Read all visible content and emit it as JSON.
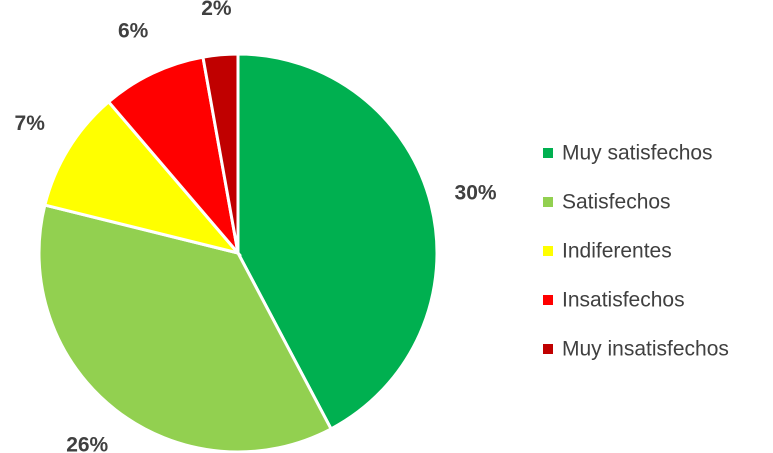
{
  "chart_data": {
    "type": "pie",
    "categories": [
      "Muy satisfechos",
      "Satisfechos",
      "Indiferentes",
      "Insatisfechos",
      "Muy insatisfechos"
    ],
    "values": [
      30,
      26,
      7,
      6,
      2
    ],
    "value_labels": [
      "30%",
      "26%",
      "7%",
      "6%",
      "2%"
    ],
    "colors": [
      "#00b050",
      "#92d050",
      "#ffff00",
      "#ff0000",
      "#c00000"
    ],
    "legend": "right"
  }
}
